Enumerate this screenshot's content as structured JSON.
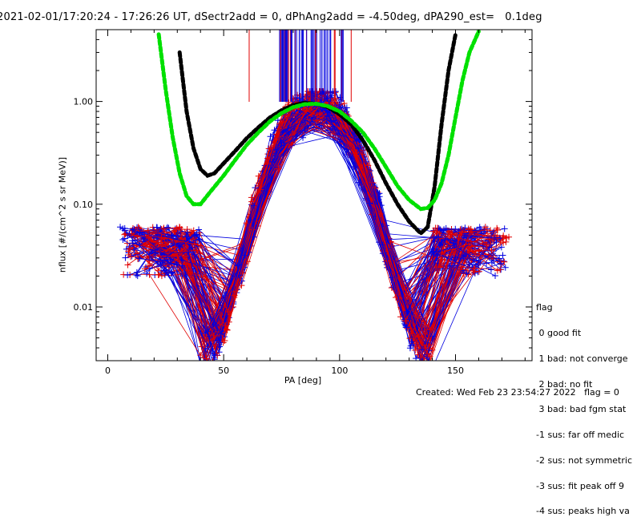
{
  "chart_data": {
    "type": "line",
    "title": "2021-02-01/17:20:24 - 17:26:26 UT, dSectr2add = 0, dPhAng2add = -4.50deg, dPA290_est=   0.1deg",
    "xlabel": "PA [deg]",
    "ylabel": "nflux [#/(cm^2 s sr MeV)]",
    "xlim": [
      -5,
      183
    ],
    "ylim": [
      0.003,
      5
    ],
    "yscale": "log",
    "x_ticks": [
      "0",
      "50",
      "100",
      "150"
    ],
    "y_ticks": [
      "0.01",
      "0.10",
      "1.00"
    ],
    "series": [
      {
        "color": "#000000",
        "style": "thick-dashed",
        "x": [
          31,
          34,
          37,
          40,
          43,
          46,
          50,
          55,
          60,
          65,
          70,
          75,
          80,
          85,
          90,
          95,
          100,
          105,
          110,
          115,
          120,
          125,
          130,
          135,
          138,
          141,
          144,
          147,
          150
        ],
        "y": [
          3.0,
          0.8,
          0.35,
          0.22,
          0.19,
          0.2,
          0.25,
          0.33,
          0.44,
          0.56,
          0.7,
          0.82,
          0.92,
          0.97,
          0.95,
          0.88,
          0.75,
          0.6,
          0.42,
          0.27,
          0.16,
          0.1,
          0.068,
          0.052,
          0.06,
          0.15,
          0.6,
          2.0,
          4.5
        ]
      },
      {
        "color": "#00e000",
        "style": "thick-dashed",
        "x": [
          22,
          25,
          28,
          31,
          34,
          37,
          40,
          44,
          50,
          55,
          60,
          65,
          70,
          75,
          80,
          85,
          90,
          95,
          100,
          105,
          110,
          115,
          120,
          125,
          130,
          135,
          138,
          141,
          144,
          147,
          150,
          153,
          156,
          160
        ],
        "y": [
          4.5,
          1.3,
          0.45,
          0.2,
          0.12,
          0.1,
          0.1,
          0.13,
          0.19,
          0.27,
          0.38,
          0.5,
          0.64,
          0.77,
          0.88,
          0.94,
          0.95,
          0.9,
          0.8,
          0.65,
          0.5,
          0.35,
          0.23,
          0.15,
          0.11,
          0.09,
          0.092,
          0.11,
          0.16,
          0.3,
          0.7,
          1.6,
          3.0,
          4.8
        ]
      }
    ],
    "legend": {
      "placement": "right",
      "title": "flag",
      "entries": [
        " 0 good fit",
        " 1 bad: not converge",
        " 2 bad: no fit",
        " 3 bad: bad fgm stat",
        "-1 sus: far off medic",
        "-2 sus: not symmetric",
        "-3 sus: fit peak off 9",
        "-4 sus: peaks high va"
      ]
    },
    "measurement_colors": [
      "#e00000",
      "#0000e0"
    ]
  },
  "footer": "Created: Wed Feb 23 23:54:27 2022   flag = 0"
}
